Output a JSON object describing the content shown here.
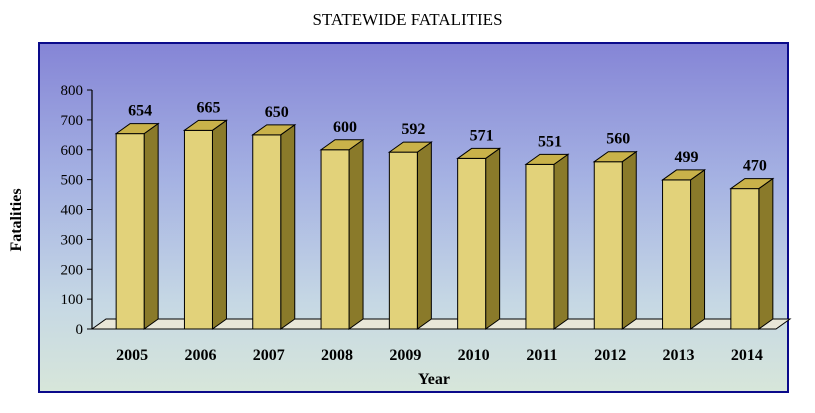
{
  "chart_data": {
    "type": "bar",
    "title": "STATEWIDE FATALITIES",
    "xlabel": "Year",
    "ylabel": "Fatalities",
    "categories": [
      "2005",
      "2006",
      "2007",
      "2008",
      "2009",
      "2010",
      "2011",
      "2012",
      "2013",
      "2014"
    ],
    "values": [
      654,
      665,
      650,
      600,
      592,
      571,
      551,
      560,
      499,
      470
    ],
    "ylim": [
      0,
      800
    ],
    "yticks": [
      0,
      100,
      200,
      300,
      400,
      500,
      600,
      700,
      800
    ],
    "grid": false,
    "legend": "none",
    "colors": {
      "bar_front": "#e2d27a",
      "bar_side": "#8a7a2a",
      "bar_top": "#c9b24a",
      "frame_border": "#0a0a8a",
      "background_top": "#8585d6",
      "background_bottom": "#d7e6da"
    }
  }
}
